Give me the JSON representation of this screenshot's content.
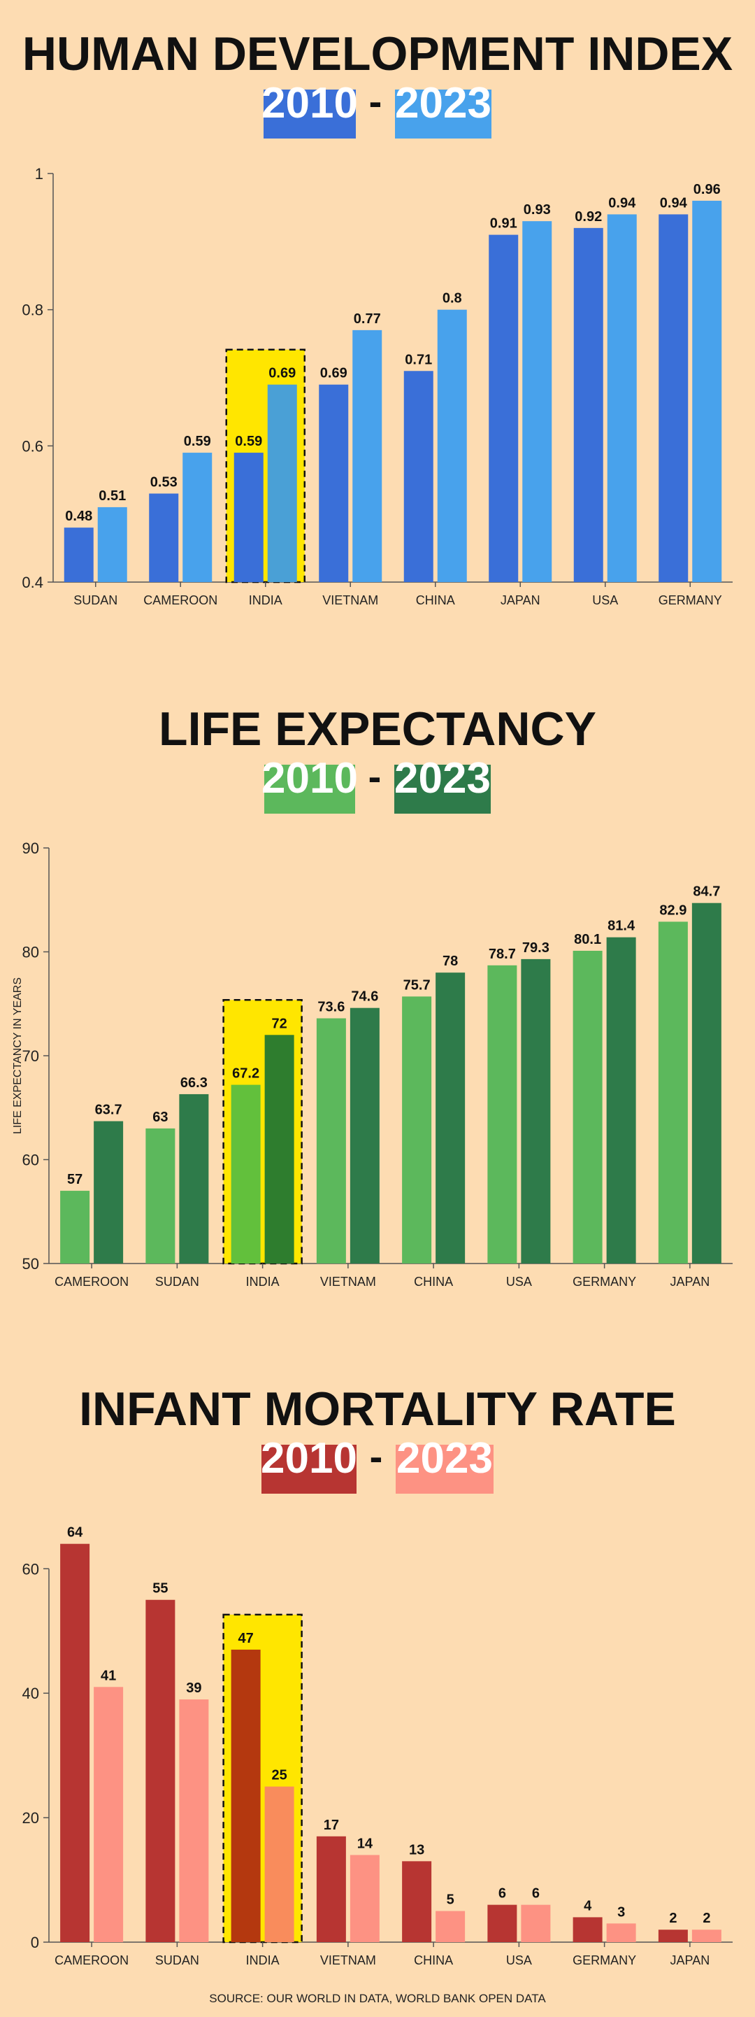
{
  "source": "SOURCE: OUR WORLD IN DATA, WORLD BANK OPEN DATA",
  "highlight_category": "INDIA",
  "chart_data": [
    {
      "type": "bar",
      "title": "HUMAN DEVELOPMENT INDEX",
      "years": [
        "2010",
        "2023"
      ],
      "ylabel": "",
      "ylim": [
        0.4,
        1.0
      ],
      "yticks": [
        0.4,
        0.6,
        0.8,
        1.0
      ],
      "ytick_labels": [
        "0.4",
        "0.6",
        "0.8",
        "1"
      ],
      "categories": [
        "SUDAN",
        "CAMEROON",
        "INDIA",
        "VIETNAM",
        "CHINA",
        "JAPAN",
        "USA",
        "GERMANY"
      ],
      "series": [
        {
          "values": [
            0.48,
            0.53,
            0.59,
            0.69,
            0.71,
            0.91,
            0.92,
            0.94
          ],
          "labels": [
            "0.48",
            "0.53",
            "0.59",
            "0.69",
            "0.71",
            "0.91",
            "0.92",
            "0.94"
          ]
        },
        {
          "values": [
            0.51,
            0.59,
            0.69,
            0.77,
            0.8,
            0.93,
            0.94,
            0.96
          ],
          "labels": [
            "0.51",
            "0.59",
            "0.69",
            "0.77",
            "0.8",
            "0.93",
            "0.94",
            "0.96"
          ]
        }
      ],
      "colors": [
        "#3a6fd8",
        "#48a2ec"
      ],
      "highlight_colors": [
        "#3a6fd8",
        "#4aa0d6"
      ]
    },
    {
      "type": "bar",
      "title": "LIFE EXPECTANCY",
      "years": [
        "2010",
        "2023"
      ],
      "ylabel": "LIFE EXPECTANCY IN YEARS",
      "ylim": [
        50,
        90
      ],
      "yticks": [
        50,
        60,
        70,
        80,
        90
      ],
      "ytick_labels": [
        "50",
        "60",
        "70",
        "80",
        "90"
      ],
      "categories": [
        "CAMEROON",
        "SUDAN",
        "INDIA",
        "VIETNAM",
        "CHINA",
        "USA",
        "GERMANY",
        "JAPAN"
      ],
      "series": [
        {
          "values": [
            57,
            63,
            67.2,
            73.6,
            75.7,
            78.7,
            80.1,
            82.9
          ],
          "labels": [
            "57",
            "63",
            "67.2",
            "73.6",
            "75.7",
            "78.7",
            "80.1",
            "82.9"
          ]
        },
        {
          "values": [
            63.7,
            66.3,
            72,
            74.6,
            78,
            79.3,
            81.4,
            84.7
          ],
          "labels": [
            "63.7",
            "66.3",
            "72",
            "74.6",
            "78",
            "79.3",
            "81.4",
            "84.7"
          ]
        }
      ],
      "colors": [
        "#5cb85c",
        "#2e7b4a"
      ],
      "highlight_colors": [
        "#62c03c",
        "#2e7d2e"
      ]
    },
    {
      "type": "bar",
      "title": "INFANT MORTALITY RATE",
      "years": [
        "2010",
        "2023"
      ],
      "ylabel": "",
      "ylim": [
        0,
        67
      ],
      "yticks": [
        0,
        20,
        40,
        60
      ],
      "ytick_labels": [
        "0",
        "20",
        "40",
        "60"
      ],
      "categories": [
        "CAMEROON",
        "SUDAN",
        "INDIA",
        "VIETNAM",
        "CHINA",
        "USA",
        "GERMANY",
        "JAPAN"
      ],
      "series": [
        {
          "values": [
            64,
            55,
            47,
            17,
            13,
            6,
            4,
            2
          ],
          "labels": [
            "64",
            "55",
            "47",
            "17",
            "13",
            "6",
            "4",
            "2"
          ]
        },
        {
          "values": [
            41,
            39,
            25,
            14,
            5,
            6,
            3,
            2
          ],
          "labels": [
            "41",
            "39",
            "25",
            "14",
            "5",
            "6",
            "3",
            "2"
          ]
        }
      ],
      "colors": [
        "#b73532",
        "#fd9283"
      ],
      "highlight_colors": [
        "#b4380f",
        "#f98c5c"
      ]
    }
  ]
}
